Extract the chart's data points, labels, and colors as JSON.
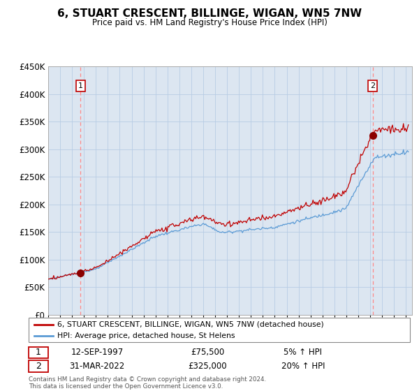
{
  "title": "6, STUART CRESCENT, BILLINGE, WIGAN, WN5 7NW",
  "subtitle": "Price paid vs. HM Land Registry's House Price Index (HPI)",
  "legend_line1": "6, STUART CRESCENT, BILLINGE, WIGAN, WN5 7NW (detached house)",
  "legend_line2": "HPI: Average price, detached house, St Helens",
  "transaction1_date": "12-SEP-1997",
  "transaction1_price": "£75,500",
  "transaction1_hpi": "5% ↑ HPI",
  "transaction2_date": "31-MAR-2022",
  "transaction2_price": "£325,000",
  "transaction2_hpi": "20% ↑ HPI",
  "footer": "Contains HM Land Registry data © Crown copyright and database right 2024.\nThis data is licensed under the Open Government Licence v3.0.",
  "hpi_color": "#5b9bd5",
  "price_color": "#c00000",
  "marker_color": "#8b0000",
  "vline_color": "#ff8888",
  "chart_bg_color": "#dce6f1",
  "background_color": "#ffffff",
  "grid_color": "#b8cce4",
  "ylim_min": 0,
  "ylim_max": 450000
}
